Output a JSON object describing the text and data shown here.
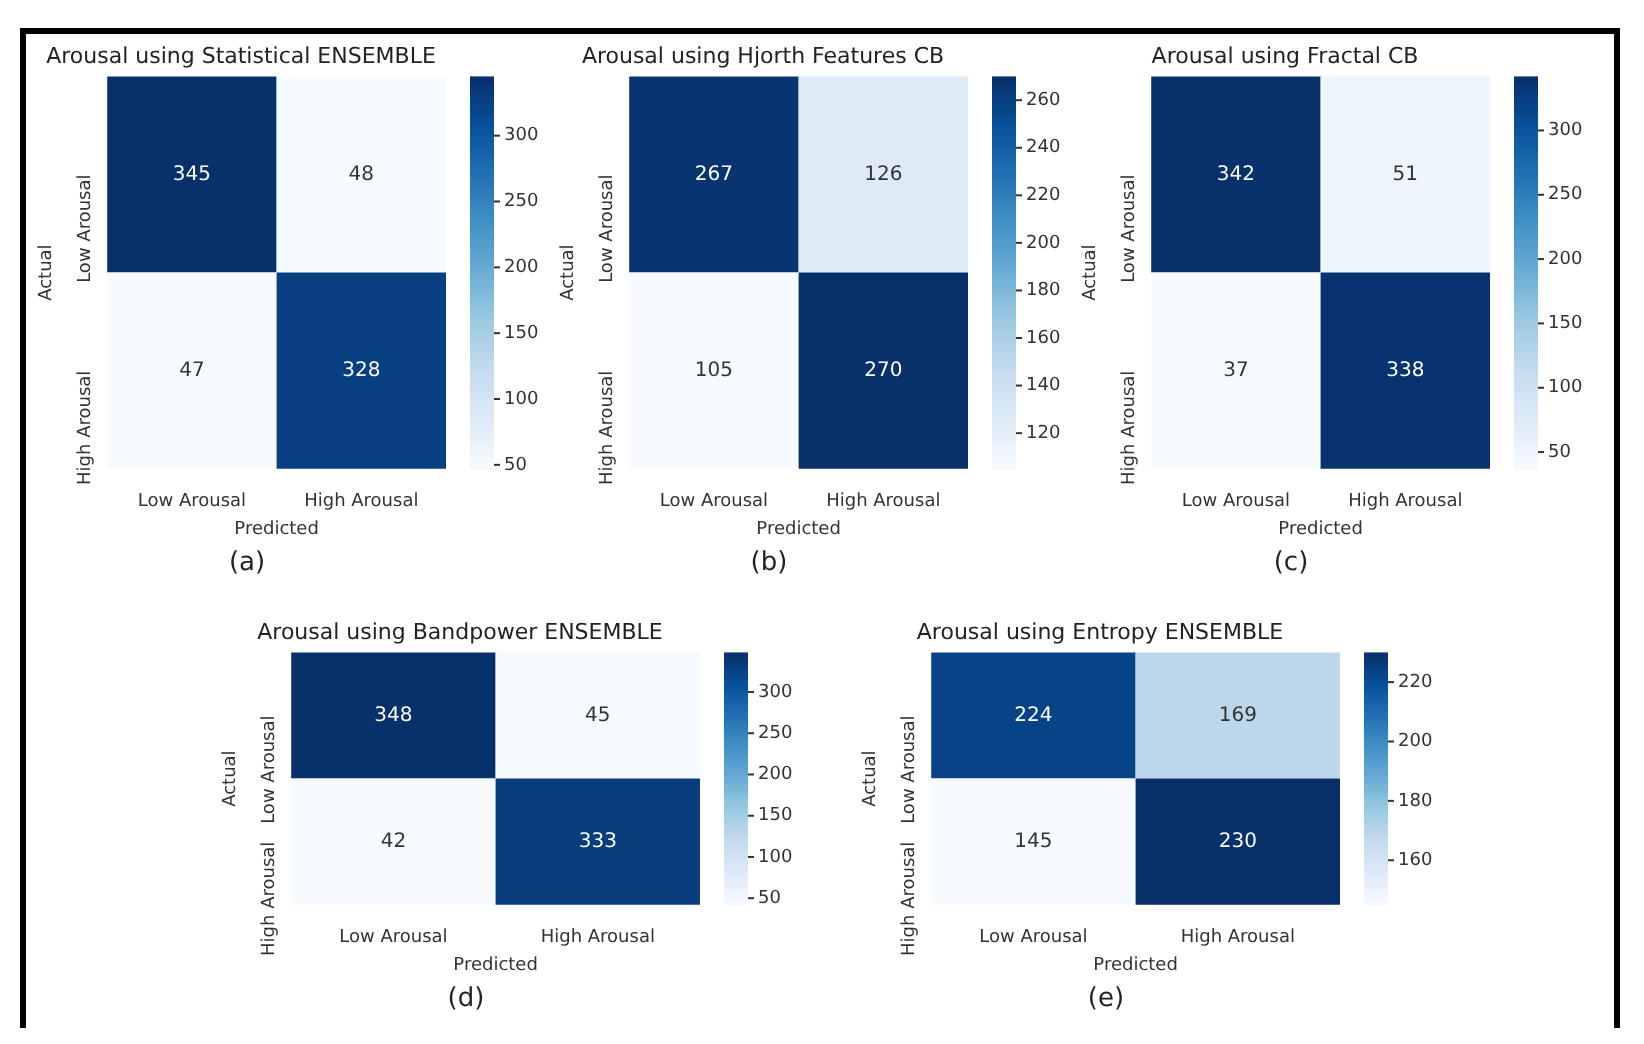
{
  "chart_data": [
    {
      "type": "heatmap",
      "title": "Arousal using Statistical ENSEMBLE",
      "xlabel": "Predicted",
      "ylabel": "Actual",
      "categories": [
        "Low Arousal",
        "High Arousal"
      ],
      "y_categories": [
        "Low Arousal",
        "High Arousal"
      ],
      "cells": [
        [
          345,
          48
        ],
        [
          47,
          328
        ]
      ],
      "clim": [
        47,
        345
      ],
      "cticks": [
        50,
        100,
        150,
        200,
        250,
        300
      ],
      "data_labels": true,
      "annotations": [
        "(a)"
      ]
    },
    {
      "type": "heatmap",
      "title": "Arousal using Hjorth Features CB",
      "xlabel": "Predicted",
      "ylabel": "Actual",
      "categories": [
        "Low Arousal",
        "High Arousal"
      ],
      "y_categories": [
        "Low Arousal",
        "High Arousal"
      ],
      "cells": [
        [
          267,
          126
        ],
        [
          105,
          270
        ]
      ],
      "clim": [
        105,
        270
      ],
      "cticks": [
        120,
        140,
        160,
        180,
        200,
        220,
        240,
        260
      ],
      "data_labels": true,
      "annotations": [
        "(b)"
      ]
    },
    {
      "type": "heatmap",
      "title": "Arousal using Fractal CB",
      "xlabel": "Predicted",
      "ylabel": "Actual",
      "categories": [
        "Low Arousal",
        "High Arousal"
      ],
      "y_categories": [
        "Low Arousal",
        "High Arousal"
      ],
      "cells": [
        [
          342,
          51
        ],
        [
          37,
          338
        ]
      ],
      "clim": [
        37,
        342
      ],
      "cticks": [
        50,
        100,
        150,
        200,
        250,
        300
      ],
      "data_labels": true,
      "annotations": [
        "(c)"
      ]
    },
    {
      "type": "heatmap",
      "title": "Arousal using Bandpower ENSEMBLE",
      "xlabel": "Predicted",
      "ylabel": "Actual",
      "categories": [
        "Low Arousal",
        "High Arousal"
      ],
      "y_categories": [
        "Low Arousal",
        "High Arousal"
      ],
      "cells": [
        [
          348,
          45
        ],
        [
          42,
          333
        ]
      ],
      "clim": [
        42,
        348
      ],
      "cticks": [
        50,
        100,
        150,
        200,
        250,
        300
      ],
      "data_labels": true,
      "annotations": [
        "(d)"
      ]
    },
    {
      "type": "heatmap",
      "title": "Arousal using Entropy ENSEMBLE",
      "xlabel": "Predicted",
      "ylabel": "Actual",
      "categories": [
        "Low Arousal",
        "High Arousal"
      ],
      "y_categories": [
        "Low Arousal",
        "High Arousal"
      ],
      "cells": [
        [
          224,
          169
        ],
        [
          145,
          230
        ]
      ],
      "clim": [
        145,
        230
      ],
      "cticks": [
        160,
        180,
        200,
        220
      ],
      "data_labels": true,
      "annotations": [
        "(e)"
      ]
    }
  ]
}
